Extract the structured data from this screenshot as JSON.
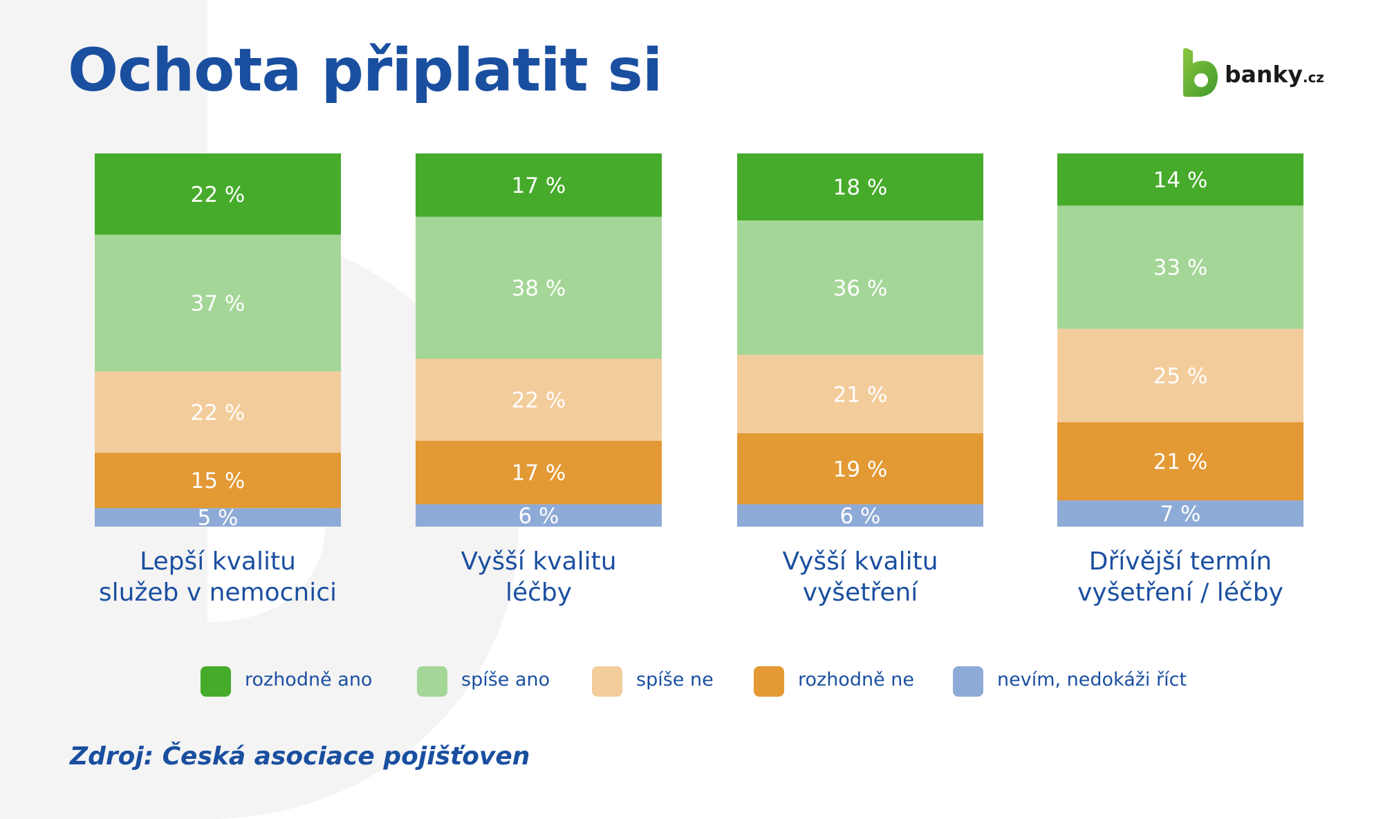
{
  "title": "Ochota připlatit si",
  "logo": {
    "name": "banky",
    "suffix": ".cz"
  },
  "source": "Zdroj: Česká asociace pojišťoven",
  "chart_data": {
    "type": "bar",
    "stacked": true,
    "orientation": "vertical",
    "categories": [
      [
        "Lepší kvalitu",
        "služeb v nemocnici"
      ],
      [
        "Vyšší kvalitu",
        "léčby"
      ],
      [
        "Vyšší kvalitu",
        "vyšetření"
      ],
      [
        "Dřívější termín",
        "vyšetření / léčby"
      ]
    ],
    "unit": "%",
    "value_suffix": " %",
    "series": [
      {
        "name": "rozhodně ano",
        "color": "#46ab2b",
        "values": [
          22,
          17,
          18,
          14
        ]
      },
      {
        "name": "spíše ano",
        "color": "#a4d697",
        "values": [
          37,
          38,
          36,
          33
        ]
      },
      {
        "name": "spíše ne",
        "color": "#f3cc9c",
        "values": [
          22,
          22,
          21,
          25
        ]
      },
      {
        "name": "rozhodně ne",
        "color": "#e39934",
        "values": [
          15,
          17,
          19,
          21
        ]
      },
      {
        "name": "nevím, nedokáži říct",
        "color": "#8eaad6",
        "values": [
          5,
          6,
          6,
          7
        ]
      }
    ],
    "legend_position": "bottom",
    "grid": false,
    "axes_visible": false,
    "label_color": "#ffffff",
    "accent_color": "#1a4fa0"
  }
}
